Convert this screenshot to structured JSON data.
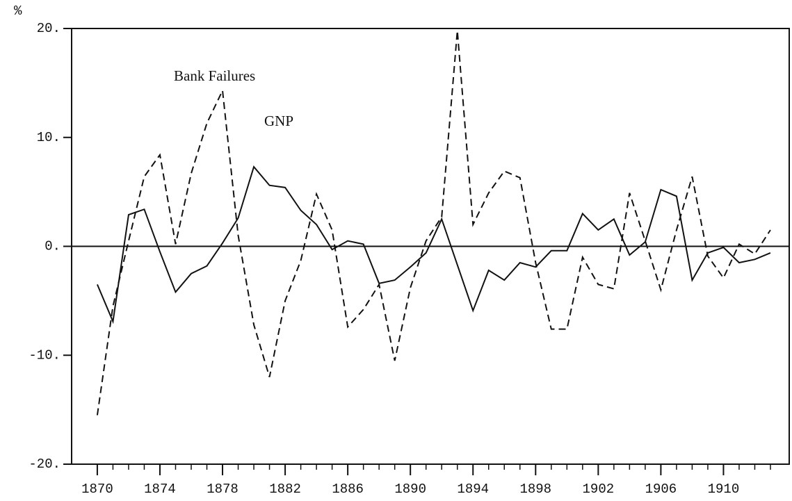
{
  "chart_data": {
    "type": "line",
    "y_label": "%",
    "x": [
      1870,
      1871,
      1872,
      1873,
      1874,
      1875,
      1876,
      1877,
      1878,
      1879,
      1880,
      1881,
      1882,
      1883,
      1884,
      1885,
      1886,
      1887,
      1888,
      1889,
      1890,
      1891,
      1892,
      1893,
      1894,
      1895,
      1896,
      1897,
      1898,
      1899,
      1900,
      1901,
      1902,
      1903,
      1904,
      1905,
      1906,
      1907,
      1908,
      1909,
      1910,
      1911,
      1912,
      1913
    ],
    "series": [
      {
        "name": "GNP",
        "color": "#111",
        "dash": false,
        "values": [
          -3.5,
          -6.9,
          2.9,
          3.4,
          -0.5,
          -4.2,
          -2.5,
          -1.8,
          0.3,
          2.6,
          7.3,
          5.6,
          5.4,
          3.3,
          2.0,
          -0.3,
          0.5,
          0.2,
          -3.4,
          -3.1,
          -1.9,
          -0.6,
          2.5,
          -1.7,
          -5.9,
          -2.2,
          -3.1,
          -1.5,
          -1.9,
          -0.4,
          -0.4,
          3.0,
          1.5,
          2.5,
          -0.8,
          0.4,
          5.2,
          4.6,
          -3.1,
          -0.6,
          -0.1,
          -1.5,
          -1.2,
          -0.6
        ]
      },
      {
        "name": "Bank Failures",
        "color": "#111",
        "dash": true,
        "values": [
          -15.5,
          -5.5,
          0.5,
          6.4,
          8.4,
          0.2,
          6.7,
          11.3,
          14.3,
          1.0,
          -7.2,
          -12.0,
          -5.0,
          -1.3,
          4.8,
          1.5,
          -7.4,
          -5.8,
          -3.5,
          -10.5,
          -3.8,
          0.5,
          2.7,
          19.8,
          2.0,
          4.9,
          6.9,
          6.3,
          -1.5,
          -7.6,
          -7.6,
          -1.0,
          -3.5,
          -3.9,
          4.9,
          0.5,
          -4.0,
          1.5,
          6.4,
          -0.9,
          -2.9,
          0.2,
          -0.7,
          1.5
        ]
      }
    ],
    "xlim": [
      1868.36,
      1914.2
    ],
    "ylim": [
      -20,
      20
    ],
    "xticks": [
      1870,
      1874,
      1878,
      1882,
      1886,
      1890,
      1894,
      1898,
      1902,
      1906,
      1910
    ],
    "xminorticks": [
      1870,
      1871,
      1872,
      1873,
      1874,
      1875,
      1876,
      1877,
      1878,
      1879,
      1880,
      1881,
      1882,
      1883,
      1884,
      1885,
      1886,
      1887,
      1888,
      1889,
      1890,
      1891,
      1892,
      1893,
      1894,
      1895,
      1896,
      1897,
      1898,
      1899,
      1900,
      1901,
      1902,
      1903,
      1904,
      1905,
      1906,
      1907,
      1908,
      1909,
      1910,
      1911,
      1912,
      1913
    ],
    "yticks": [
      {
        "value": 20,
        "label": "20."
      },
      {
        "value": 10,
        "label": "10."
      },
      {
        "value": 0,
        "label": "0."
      },
      {
        "value": -10,
        "label": "-10."
      },
      {
        "value": -20,
        "label": "-20."
      }
    ],
    "zero_line": true
  }
}
